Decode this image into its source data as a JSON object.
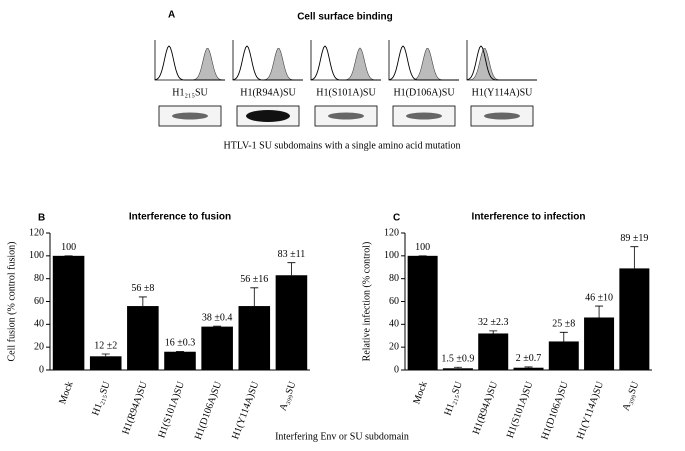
{
  "panel_a": {
    "letter": "A",
    "title": "Cell surface binding",
    "labels": [
      "H1₂₁₅SU",
      "H1(R94A)SU",
      "H1(S101A)SU",
      "H1(D106A)SU",
      "H1(Y114A)SU"
    ],
    "caption": "HTLV-1 SU subdomains with a single amino acid mutation"
  },
  "x_label": "Interfering Env or SU subdomain",
  "chart_data": [
    {
      "type": "bar",
      "letter": "B",
      "title": "Interference to fusion",
      "ylabel": "Cell fusion (% control fusion)",
      "categories": [
        "Mock",
        "H1₂₁₅SU",
        "H1(R94A)SU",
        "H1(S101A)SU",
        "H1(D106A)SU",
        "H1(Y114A)SU",
        "A₃₉₉SU"
      ],
      "values": [
        100,
        12,
        56,
        16,
        38,
        56,
        83
      ],
      "errors": [
        0,
        2,
        8,
        0.3,
        0.4,
        16,
        11
      ],
      "value_labels": [
        "100",
        "12 ±2",
        "56 ±8",
        "16 ±0.3",
        "38 ±0.4",
        "56 ±16",
        "83 ±11"
      ],
      "color": "#000000",
      "ylim": [
        0,
        120
      ],
      "yticks": [
        0,
        20,
        40,
        60,
        80,
        100,
        120
      ]
    },
    {
      "type": "bar",
      "letter": "C",
      "title": "Interference to infection",
      "ylabel": "Relative infection  (% control)",
      "categories": [
        "Mock",
        "H1₂₁₅SU",
        "H1(R94A)SU",
        "H1(S101A)SU",
        "H1(D106A)SU",
        "H1(Y114A)SU",
        "A₃₉₉SU"
      ],
      "values": [
        100,
        1.5,
        32,
        2,
        25,
        46,
        89
      ],
      "errors": [
        0,
        0.9,
        2.3,
        0.7,
        8,
        10,
        19
      ],
      "value_labels": [
        "100",
        "1.5 ±0.9",
        "32 ±2.3",
        "2 ±0.7",
        "25 ±8",
        "46 ±10",
        "89 ±19"
      ],
      "color": "#000000",
      "ylim": [
        0,
        120
      ],
      "yticks": [
        0,
        20,
        40,
        60,
        80,
        100,
        120
      ]
    }
  ]
}
